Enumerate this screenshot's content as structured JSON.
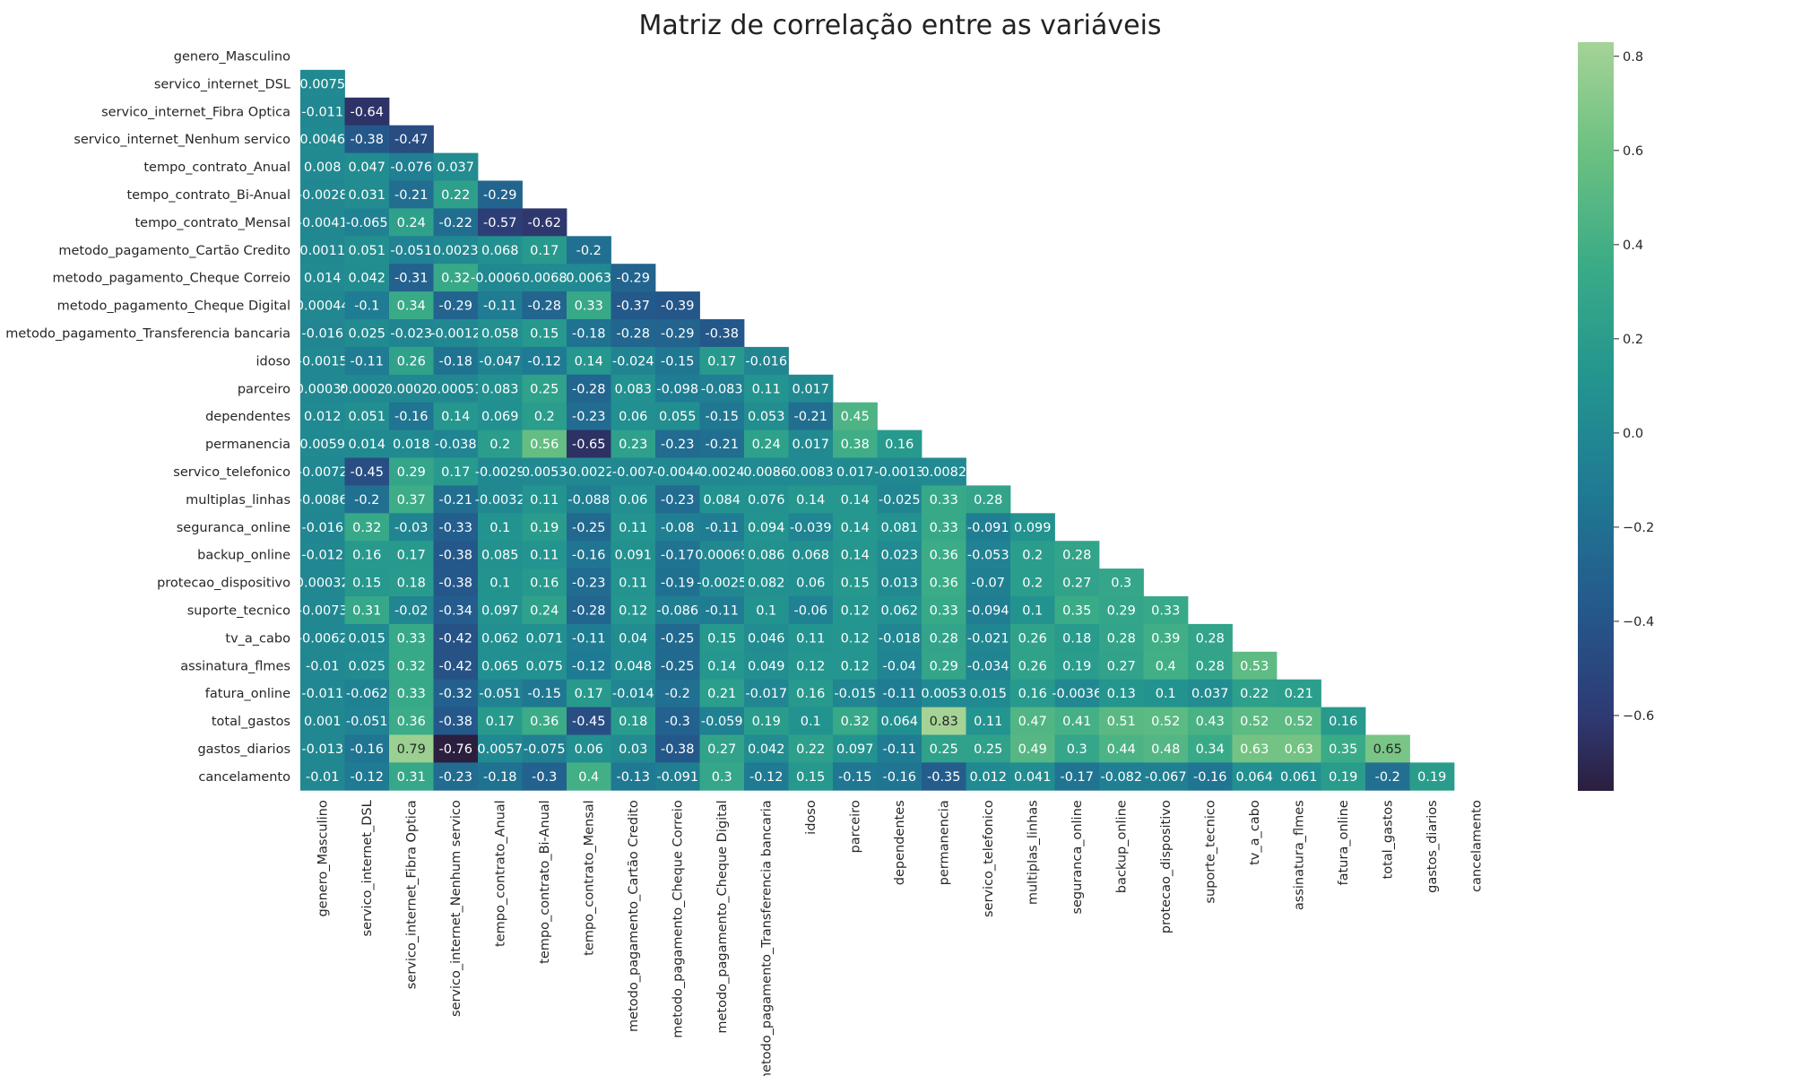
{
  "chart_data": {
    "type": "heatmap",
    "title": "Matriz de correlação entre as variáveis",
    "colormap": "crest",
    "vmin": -0.76,
    "vmax": 0.83,
    "mask": "upper-triangle-including-diagonal",
    "colorbar_ticks": [
      {
        "value": 0.8,
        "label": "0.8"
      },
      {
        "value": 0.6,
        "label": "0.6"
      },
      {
        "value": 0.4,
        "label": "0.4"
      },
      {
        "value": 0.2,
        "label": "0.2"
      },
      {
        "value": 0.0,
        "label": "0.0"
      },
      {
        "value": -0.2,
        "label": "−0.2"
      },
      {
        "value": -0.4,
        "label": "−0.4"
      },
      {
        "value": -0.6,
        "label": "−0.6"
      }
    ],
    "variables": [
      "genero_Masculino",
      "servico_internet_DSL",
      "servico_internet_Fibra Optica",
      "servico_internet_Nenhum servico",
      "tempo_contrato_Anual",
      "tempo_contrato_Bi-Anual",
      "tempo_contrato_Mensal",
      "metodo_pagamento_Cartão Credito",
      "metodo_pagamento_Cheque Correio",
      "metodo_pagamento_Cheque Digital",
      "metodo_pagamento_Transferencia bancaria",
      "idoso",
      "parceiro",
      "dependentes",
      "permanencia",
      "servico_telefonico",
      "multiplas_linhas",
      "seguranca_online",
      "backup_online",
      "protecao_dispositivo",
      "suporte_tecnico",
      "tv_a_cabo",
      "assinatura_flmes",
      "fatura_online",
      "total_gastos",
      "gastos_diarios",
      "cancelamento"
    ],
    "rows": [
      [],
      [
        0.0075
      ],
      [
        -0.011,
        -0.64
      ],
      [
        0.0046,
        -0.38,
        -0.47
      ],
      [
        0.008,
        0.047,
        -0.076,
        0.037
      ],
      [
        -0.0028,
        0.031,
        -0.21,
        0.22,
        -0.29
      ],
      [
        -0.0041,
        -0.065,
        0.24,
        -0.22,
        -0.57,
        -0.62
      ],
      [
        0.0011,
        0.051,
        -0.051,
        0.0023,
        0.068,
        0.17,
        -0.2
      ],
      [
        0.014,
        0.042,
        -0.31,
        0.32,
        -0.00067,
        0.0068,
        0.0063,
        -0.29
      ],
      [
        0.00044,
        -0.1,
        0.34,
        -0.29,
        -0.11,
        -0.28,
        0.33,
        -0.37,
        -0.39
      ],
      [
        -0.016,
        0.025,
        -0.023,
        -0.0012,
        0.058,
        0.15,
        -0.18,
        -0.28,
        -0.29,
        -0.38
      ],
      [
        -0.0015,
        -0.11,
        0.26,
        -0.18,
        -0.047,
        -0.12,
        0.14,
        -0.024,
        -0.15,
        0.17,
        -0.016
      ],
      [
        0.00035,
        0.00023,
        0.00021,
        0.00051,
        0.083,
        0.25,
        -0.28,
        0.083,
        -0.098,
        -0.083,
        0.11,
        0.017
      ],
      [
        0.012,
        0.051,
        -0.16,
        0.14,
        0.069,
        0.2,
        -0.23,
        0.06,
        0.055,
        -0.15,
        0.053,
        -0.21,
        0.45
      ],
      [
        0.0059,
        0.014,
        0.018,
        -0.038,
        0.2,
        0.56,
        -0.65,
        0.23,
        -0.23,
        -0.21,
        0.24,
        0.017,
        0.38,
        0.16
      ],
      [
        -0.0072,
        -0.45,
        0.29,
        0.17,
        -0.0029,
        0.0053,
        -0.0022,
        -0.007,
        -0.0044,
        0.0024,
        0.0086,
        0.0083,
        0.017,
        -0.0013,
        0.0082
      ],
      [
        -0.0086,
        -0.2,
        0.37,
        -0.21,
        -0.0032,
        0.11,
        -0.088,
        0.06,
        -0.23,
        0.084,
        0.076,
        0.14,
        0.14,
        -0.025,
        0.33,
        0.28
      ],
      [
        -0.016,
        0.32,
        -0.03,
        -0.33,
        0.1,
        0.19,
        -0.25,
        0.11,
        -0.08,
        -0.11,
        0.094,
        -0.039,
        0.14,
        0.081,
        0.33,
        -0.091,
        0.099
      ],
      [
        -0.012,
        0.16,
        0.17,
        -0.38,
        0.085,
        0.11,
        -0.16,
        0.091,
        -0.17,
        0.00069,
        0.086,
        0.068,
        0.14,
        0.023,
        0.36,
        -0.053,
        0.2,
        0.28
      ],
      [
        0.00032,
        0.15,
        0.18,
        -0.38,
        0.1,
        0.16,
        -0.23,
        0.11,
        -0.19,
        -0.0025,
        0.082,
        0.06,
        0.15,
        0.013,
        0.36,
        -0.07,
        0.2,
        0.27,
        0.3
      ],
      [
        -0.0073,
        0.31,
        -0.02,
        -0.34,
        0.097,
        0.24,
        -0.28,
        0.12,
        -0.086,
        -0.11,
        0.1,
        -0.06,
        0.12,
        0.062,
        0.33,
        -0.094,
        0.1,
        0.35,
        0.29,
        0.33
      ],
      [
        -0.0062,
        0.015,
        0.33,
        -0.42,
        0.062,
        0.071,
        -0.11,
        0.04,
        -0.25,
        0.15,
        0.046,
        0.11,
        0.12,
        -0.018,
        0.28,
        -0.021,
        0.26,
        0.18,
        0.28,
        0.39,
        0.28
      ],
      [
        -0.01,
        0.025,
        0.32,
        -0.42,
        0.065,
        0.075,
        -0.12,
        0.048,
        -0.25,
        0.14,
        0.049,
        0.12,
        0.12,
        -0.04,
        0.29,
        -0.034,
        0.26,
        0.19,
        0.27,
        0.4,
        0.28,
        0.53
      ],
      [
        -0.011,
        -0.062,
        0.33,
        -0.32,
        -0.051,
        -0.15,
        0.17,
        -0.014,
        -0.2,
        0.21,
        -0.017,
        0.16,
        -0.015,
        -0.11,
        0.0053,
        0.015,
        0.16,
        -0.0036,
        0.13,
        0.1,
        0.037,
        0.22,
        0.21
      ],
      [
        0.001,
        -0.051,
        0.36,
        -0.38,
        0.17,
        0.36,
        -0.45,
        0.18,
        -0.3,
        -0.059,
        0.19,
        0.1,
        0.32,
        0.064,
        0.83,
        0.11,
        0.47,
        0.41,
        0.51,
        0.52,
        0.43,
        0.52,
        0.52,
        0.16
      ],
      [
        -0.013,
        -0.16,
        0.79,
        -0.76,
        0.0057,
        -0.075,
        0.06,
        0.03,
        -0.38,
        0.27,
        0.042,
        0.22,
        0.097,
        -0.11,
        0.25,
        0.25,
        0.49,
        0.3,
        0.44,
        0.48,
        0.34,
        0.63,
        0.63,
        0.35,
        0.65
      ],
      [
        -0.01,
        -0.12,
        0.31,
        -0.23,
        -0.18,
        -0.3,
        0.4,
        -0.13,
        -0.091,
        0.3,
        -0.12,
        0.15,
        -0.15,
        -0.16,
        -0.35,
        0.012,
        0.041,
        -0.17,
        -0.082,
        -0.067,
        -0.16,
        0.064,
        0.061,
        0.19,
        -0.2,
        0.19
      ]
    ]
  }
}
